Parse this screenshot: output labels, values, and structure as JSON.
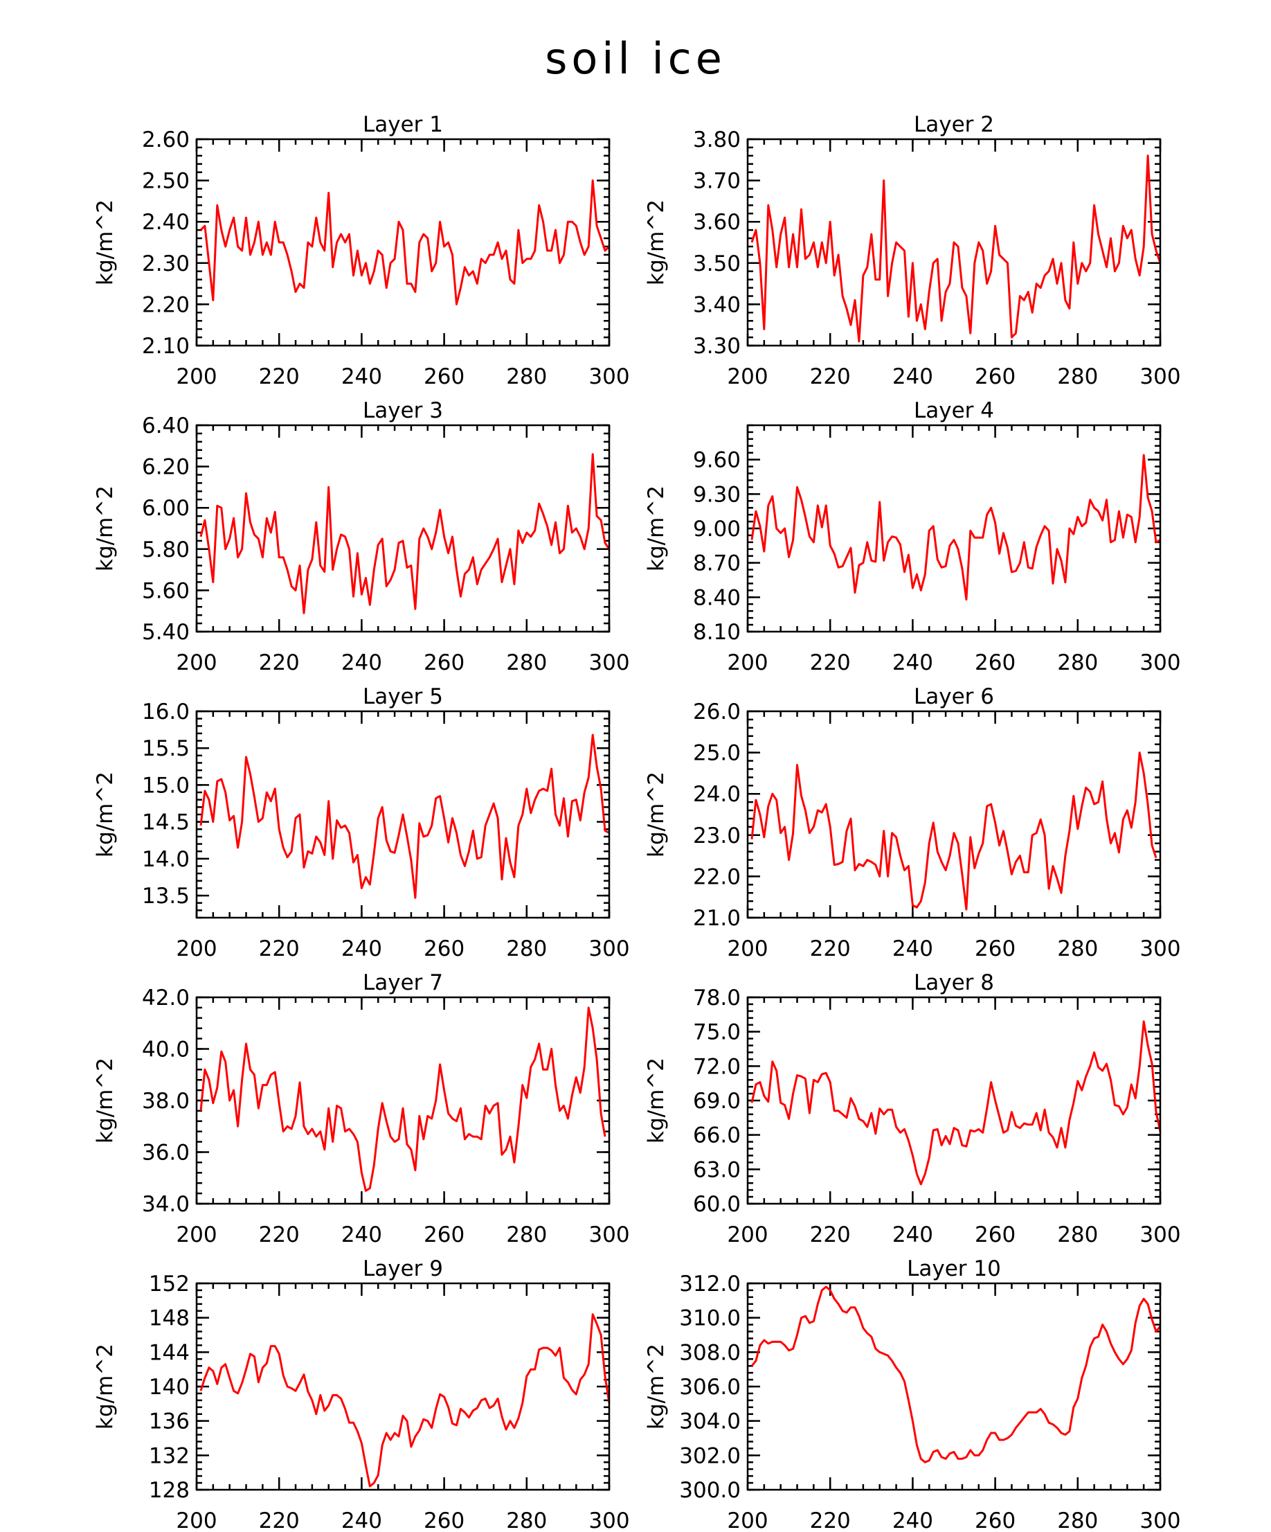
{
  "figure": {
    "title": "soil ice"
  },
  "chart_data": [
    {
      "type": "line",
      "title": "Layer 1",
      "ylabel": "kg/m^2",
      "xlabel": "",
      "xlim": [
        200,
        300
      ],
      "ylim": [
        2.1,
        2.6
      ],
      "xticks": [
        200,
        220,
        240,
        260,
        280,
        300
      ],
      "yticks": [
        "2.10",
        "2.20",
        "2.30",
        "2.40",
        "2.50",
        "2.60"
      ],
      "x_start": 201,
      "x_step": 1,
      "line_color": "#ff0000",
      "values": [
        2.38,
        2.39,
        2.3,
        2.21,
        2.44,
        2.38,
        2.34,
        2.38,
        2.41,
        2.34,
        2.33,
        2.41,
        2.32,
        2.35,
        2.4,
        2.32,
        2.35,
        2.32,
        2.4,
        2.35,
        2.35,
        2.32,
        2.28,
        2.23,
        2.25,
        2.24,
        2.35,
        2.34,
        2.41,
        2.35,
        2.33,
        2.47,
        2.29,
        2.35,
        2.37,
        2.35,
        2.37,
        2.27,
        2.33,
        2.27,
        2.3,
        2.25,
        2.28,
        2.33,
        2.32,
        2.24,
        2.3,
        2.31,
        2.4,
        2.38,
        2.25,
        2.25,
        2.23,
        2.35,
        2.37,
        2.36,
        2.28,
        2.3,
        2.4,
        2.34,
        2.35,
        2.32,
        2.2,
        2.24,
        2.29,
        2.27,
        2.28,
        2.25,
        2.31,
        2.3,
        2.32,
        2.32,
        2.35,
        2.31,
        2.33,
        2.26,
        2.25,
        2.38,
        2.3,
        2.31,
        2.31,
        2.33,
        2.44,
        2.4,
        2.33,
        2.33,
        2.38,
        2.3,
        2.32,
        2.4,
        2.4,
        2.39,
        2.35,
        2.32,
        2.34,
        2.5,
        2.39,
        2.36,
        2.33,
        2.34
      ]
    },
    {
      "type": "line",
      "title": "Layer 2",
      "ylabel": "kg/m^2",
      "xlabel": "",
      "xlim": [
        200,
        300
      ],
      "ylim": [
        3.3,
        3.8
      ],
      "xticks": [
        200,
        220,
        240,
        260,
        280,
        300
      ],
      "yticks": [
        "3.30",
        "3.40",
        "3.50",
        "3.60",
        "3.70",
        "3.80"
      ],
      "x_start": 201,
      "x_step": 1,
      "line_color": "#ff0000",
      "values": [
        3.55,
        3.58,
        3.5,
        3.34,
        3.64,
        3.58,
        3.49,
        3.57,
        3.61,
        3.49,
        3.57,
        3.49,
        3.63,
        3.51,
        3.52,
        3.55,
        3.49,
        3.55,
        3.5,
        3.6,
        3.47,
        3.52,
        3.42,
        3.39,
        3.35,
        3.41,
        3.31,
        3.47,
        3.49,
        3.57,
        3.46,
        3.46,
        3.7,
        3.42,
        3.5,
        3.55,
        3.54,
        3.53,
        3.37,
        3.5,
        3.36,
        3.4,
        3.34,
        3.43,
        3.5,
        3.51,
        3.36,
        3.43,
        3.45,
        3.55,
        3.54,
        3.44,
        3.42,
        3.33,
        3.5,
        3.55,
        3.53,
        3.45,
        3.48,
        3.59,
        3.52,
        3.51,
        3.5,
        3.32,
        3.33,
        3.42,
        3.41,
        3.43,
        3.38,
        3.45,
        3.44,
        3.47,
        3.48,
        3.51,
        3.45,
        3.5,
        3.41,
        3.39,
        3.55,
        3.45,
        3.5,
        3.48,
        3.5,
        3.64,
        3.57,
        3.53,
        3.49,
        3.56,
        3.48,
        3.5,
        3.59,
        3.56,
        3.58,
        3.51,
        3.47,
        3.54,
        3.76,
        3.57,
        3.53,
        3.5
      ]
    },
    {
      "type": "line",
      "title": "Layer 3",
      "ylabel": "kg/m^2",
      "xlabel": "",
      "xlim": [
        200,
        300
      ],
      "ylim": [
        5.4,
        6.4
      ],
      "xticks": [
        200,
        220,
        240,
        260,
        280,
        300
      ],
      "yticks": [
        "5.40",
        "5.60",
        "5.80",
        "6.00",
        "6.20",
        "6.40"
      ],
      "x_start": 201,
      "x_step": 1,
      "line_color": "#ff0000",
      "values": [
        5.86,
        5.94,
        5.8,
        5.64,
        6.01,
        6.0,
        5.8,
        5.85,
        5.95,
        5.76,
        5.8,
        6.07,
        5.93,
        5.87,
        5.85,
        5.76,
        5.95,
        5.88,
        5.98,
        5.76,
        5.76,
        5.7,
        5.62,
        5.6,
        5.72,
        5.49,
        5.7,
        5.75,
        5.93,
        5.72,
        5.69,
        6.1,
        5.7,
        5.8,
        5.87,
        5.86,
        5.8,
        5.57,
        5.78,
        5.58,
        5.66,
        5.53,
        5.7,
        5.82,
        5.85,
        5.62,
        5.65,
        5.7,
        5.83,
        5.84,
        5.71,
        5.72,
        5.51,
        5.85,
        5.9,
        5.86,
        5.8,
        5.88,
        5.99,
        5.86,
        5.78,
        5.86,
        5.7,
        5.57,
        5.68,
        5.7,
        5.76,
        5.63,
        5.7,
        5.73,
        5.76,
        5.8,
        5.85,
        5.64,
        5.72,
        5.8,
        5.63,
        5.89,
        5.83,
        5.88,
        5.86,
        5.89,
        6.02,
        5.97,
        5.91,
        5.82,
        5.93,
        5.78,
        5.8,
        6.01,
        5.88,
        5.9,
        5.86,
        5.8,
        5.9,
        6.26,
        5.96,
        5.94,
        5.83,
        5.8
      ]
    },
    {
      "type": "line",
      "title": "Layer 4",
      "ylabel": "kg/m^2",
      "xlabel": "",
      "xlim": [
        200,
        300
      ],
      "ylim": [
        8.1,
        9.9
      ],
      "xticks": [
        200,
        220,
        240,
        260,
        280,
        300
      ],
      "yticks": [
        "8.10",
        "8.40",
        "8.70",
        "9.00",
        "9.30",
        "9.60"
      ],
      "x_start": 201,
      "x_step": 1,
      "line_color": "#ff0000",
      "values": [
        8.9,
        9.15,
        9.02,
        8.8,
        9.2,
        9.28,
        9.0,
        8.96,
        9.0,
        8.75,
        8.9,
        9.36,
        9.25,
        9.1,
        8.93,
        8.88,
        9.2,
        9.01,
        9.2,
        8.85,
        8.78,
        8.66,
        8.67,
        8.75,
        8.83,
        8.44,
        8.68,
        8.7,
        8.88,
        8.72,
        8.71,
        9.23,
        8.72,
        8.88,
        8.93,
        8.92,
        8.86,
        8.62,
        8.77,
        8.48,
        8.6,
        8.46,
        8.6,
        8.98,
        9.02,
        8.73,
        8.66,
        8.67,
        8.85,
        8.9,
        8.82,
        8.65,
        8.38,
        8.98,
        8.92,
        8.92,
        8.92,
        9.12,
        9.18,
        9.05,
        8.78,
        8.96,
        8.83,
        8.62,
        8.63,
        8.7,
        8.88,
        8.66,
        8.65,
        8.84,
        8.94,
        9.02,
        8.98,
        8.52,
        8.82,
        8.72,
        8.53,
        9.0,
        8.95,
        9.1,
        9.02,
        9.05,
        9.25,
        9.18,
        9.15,
        9.07,
        9.25,
        8.88,
        8.9,
        9.15,
        8.92,
        9.12,
        9.1,
        8.88,
        9.1,
        9.64,
        9.27,
        9.15,
        8.88,
        8.9
      ]
    },
    {
      "type": "line",
      "title": "Layer 5",
      "ylabel": "kg/m^2",
      "xlabel": "",
      "xlim": [
        200,
        300
      ],
      "ylim": [
        13.2,
        16.0
      ],
      "xticks": [
        200,
        220,
        240,
        260,
        280,
        300
      ],
      "yticks": [
        "13.5",
        "14.0",
        "14.5",
        "15.0",
        "15.5",
        "16.0"
      ],
      "x_start": 201,
      "x_step": 1,
      "line_color": "#ff0000",
      "values": [
        14.45,
        14.92,
        14.8,
        14.5,
        15.05,
        15.08,
        14.9,
        14.52,
        14.58,
        14.15,
        14.5,
        15.38,
        15.15,
        14.84,
        14.5,
        14.55,
        14.9,
        14.78,
        14.95,
        14.4,
        14.15,
        14.02,
        14.1,
        14.55,
        14.6,
        13.88,
        14.1,
        14.07,
        14.3,
        14.22,
        14.05,
        14.78,
        14.0,
        14.52,
        14.42,
        14.45,
        14.35,
        13.95,
        14.05,
        13.6,
        13.75,
        13.65,
        14.08,
        14.55,
        14.7,
        14.25,
        14.1,
        14.08,
        14.32,
        14.6,
        14.3,
        13.98,
        13.47,
        14.48,
        14.3,
        14.32,
        14.45,
        14.82,
        14.85,
        14.55,
        14.22,
        14.55,
        14.35,
        14.05,
        13.9,
        14.1,
        14.38,
        14.0,
        14.02,
        14.45,
        14.6,
        14.75,
        14.55,
        13.72,
        14.28,
        13.95,
        13.75,
        14.45,
        14.6,
        14.95,
        14.62,
        14.8,
        14.92,
        14.95,
        14.92,
        15.22,
        14.6,
        14.45,
        14.82,
        14.3,
        14.78,
        14.8,
        14.52,
        14.9,
        15.1,
        15.68,
        15.25,
        14.95,
        14.38,
        14.35
      ]
    },
    {
      "type": "line",
      "title": "Layer 6",
      "ylabel": "kg/m^2",
      "xlabel": "",
      "xlim": [
        200,
        300
      ],
      "ylim": [
        21.0,
        26.0
      ],
      "xticks": [
        200,
        220,
        240,
        260,
        280,
        300
      ],
      "yticks": [
        "21.0",
        "22.0",
        "23.0",
        "24.0",
        "25.0",
        "26.0"
      ],
      "x_start": 201,
      "x_step": 1,
      "line_color": "#ff0000",
      "values": [
        22.9,
        23.85,
        23.5,
        22.95,
        23.7,
        24.0,
        23.85,
        23.05,
        23.2,
        22.4,
        23.05,
        24.7,
        23.95,
        23.6,
        23.05,
        23.2,
        23.6,
        23.55,
        23.75,
        23.2,
        22.28,
        22.3,
        22.35,
        23.1,
        23.4,
        22.15,
        22.3,
        22.25,
        22.4,
        22.35,
        22.28,
        22.0,
        23.1,
        22.0,
        23.05,
        22.95,
        22.5,
        22.15,
        22.25,
        21.3,
        21.25,
        21.4,
        21.85,
        22.8,
        23.3,
        22.6,
        22.35,
        22.15,
        22.5,
        23.05,
        22.8,
        22.05,
        21.2,
        22.95,
        22.2,
        22.55,
        22.8,
        23.7,
        23.75,
        23.3,
        22.75,
        23.1,
        22.6,
        22.05,
        22.35,
        22.5,
        22.1,
        22.1,
        23.0,
        23.05,
        23.38,
        23.0,
        21.7,
        22.25,
        21.95,
        21.6,
        22.5,
        23.1,
        23.95,
        23.15,
        23.7,
        24.15,
        24.05,
        23.75,
        23.8,
        24.3,
        23.4,
        22.8,
        23.05,
        22.58,
        23.38,
        23.6,
        23.18,
        23.8,
        25.0,
        24.5,
        23.75,
        22.75,
        22.45
      ]
    },
    {
      "type": "line",
      "title": "Layer 7",
      "ylabel": "kg/m^2",
      "xlabel": "",
      "xlim": [
        200,
        300
      ],
      "ylim": [
        34.0,
        42.0
      ],
      "xticks": [
        200,
        220,
        240,
        260,
        280,
        300
      ],
      "yticks": [
        "34.0",
        "36.0",
        "38.0",
        "40.0",
        "42.0"
      ],
      "x_start": 201,
      "x_step": 1,
      "line_color": "#ff0000",
      "values": [
        37.6,
        39.2,
        38.8,
        37.9,
        38.5,
        39.9,
        39.5,
        38.0,
        38.4,
        37.0,
        38.8,
        40.2,
        39.2,
        39.0,
        37.7,
        38.6,
        38.6,
        39.0,
        39.1,
        37.9,
        36.8,
        37.0,
        36.9,
        37.4,
        38.7,
        37.0,
        36.7,
        36.9,
        36.6,
        36.8,
        36.1,
        37.7,
        36.4,
        37.8,
        37.7,
        36.8,
        36.9,
        36.7,
        36.4,
        35.2,
        34.5,
        34.6,
        35.5,
        36.9,
        37.9,
        37.2,
        36.6,
        36.4,
        36.5,
        37.7,
        36.3,
        36.1,
        35.3,
        37.4,
        36.5,
        37.4,
        37.3,
        38.0,
        39.4,
        38.4,
        37.5,
        37.3,
        37.2,
        37.7,
        36.5,
        36.7,
        36.6,
        36.6,
        36.5,
        37.8,
        37.5,
        37.8,
        37.9,
        35.9,
        36.1,
        36.6,
        35.6,
        37.0,
        38.6,
        38.1,
        39.3,
        39.6,
        40.2,
        39.2,
        39.2,
        40.0,
        38.6,
        37.6,
        37.8,
        37.3,
        38.2,
        38.9,
        38.3,
        39.3,
        41.6,
        40.8,
        39.6,
        37.5,
        36.6
      ]
    },
    {
      "type": "line",
      "title": "Layer 8",
      "ylabel": "kg/m^2",
      "xlabel": "",
      "xlim": [
        200,
        300
      ],
      "ylim": [
        60.0,
        78.0
      ],
      "xticks": [
        200,
        220,
        240,
        260,
        280,
        300
      ],
      "yticks": [
        "60.0",
        "63.0",
        "66.0",
        "69.0",
        "72.0",
        "75.0",
        "78.0"
      ],
      "x_start": 201,
      "x_step": 1,
      "line_color": "#ff0000",
      "values": [
        68.8,
        70.4,
        70.6,
        69.4,
        68.9,
        72.4,
        71.6,
        68.8,
        68.6,
        67.4,
        69.6,
        71.2,
        71.1,
        70.9,
        67.9,
        70.8,
        70.6,
        71.3,
        71.4,
        70.6,
        68.1,
        68.1,
        67.8,
        67.5,
        69.2,
        68.5,
        67.4,
        67.2,
        66.7,
        67.9,
        66.1,
        68.3,
        67.8,
        68.2,
        68.2,
        66.7,
        66.2,
        66.5,
        65.5,
        64.2,
        62.6,
        61.7,
        62.6,
        64.0,
        66.4,
        66.5,
        65.1,
        65.9,
        65.2,
        66.6,
        66.4,
        65.1,
        65.0,
        66.4,
        66.3,
        66.5,
        66.2,
        68.3,
        70.6,
        69.0,
        67.6,
        66.2,
        66.4,
        68.0,
        66.8,
        66.6,
        67.0,
        66.9,
        66.9,
        67.9,
        66.4,
        68.2,
        66.2,
        65.8,
        64.9,
        66.6,
        64.9,
        67.3,
        68.8,
        70.7,
        69.9,
        71.1,
        72.0,
        73.2,
        71.9,
        71.6,
        72.2,
        70.8,
        68.6,
        68.5,
        67.8,
        68.4,
        70.4,
        69.2,
        72.0,
        75.9,
        73.8,
        72.2,
        68.0,
        66.3
      ]
    },
    {
      "type": "line",
      "title": "Layer 9",
      "ylabel": "kg/m^2",
      "xlabel": "",
      "xlim": [
        200,
        300
      ],
      "ylim": [
        128,
        152
      ],
      "xticks": [
        200,
        220,
        240,
        260,
        280,
        300
      ],
      "yticks": [
        "128",
        "132",
        "136",
        "140",
        "144",
        "148",
        "152"
      ],
      "x_start": 201,
      "x_step": 1,
      "line_color": "#ff0000",
      "values": [
        139.5,
        141.0,
        142.2,
        141.8,
        140.3,
        142.2,
        142.6,
        141.0,
        139.5,
        139.2,
        140.4,
        142.0,
        143.8,
        143.5,
        140.5,
        142.2,
        142.7,
        144.7,
        144.7,
        143.8,
        141.3,
        140.0,
        139.8,
        139.5,
        140.4,
        141.4,
        139.4,
        138.4,
        136.8,
        139.0,
        137.2,
        137.8,
        139.0,
        139.0,
        138.6,
        137.4,
        135.8,
        135.8,
        134.8,
        133.4,
        130.8,
        128.4,
        128.8,
        129.7,
        133.2,
        134.6,
        133.8,
        134.6,
        134.2,
        136.6,
        136.0,
        133.0,
        134.2,
        134.9,
        136.2,
        136.0,
        135.2,
        137.4,
        139.1,
        138.8,
        137.6,
        135.7,
        135.5,
        137.4,
        137.0,
        136.4,
        137.2,
        137.5,
        138.4,
        138.6,
        137.5,
        137.8,
        138.6,
        136.5,
        135.0,
        136.0,
        135.2,
        136.3,
        138.1,
        141.2,
        142.0,
        142.0,
        144.3,
        144.5,
        144.5,
        144.2,
        143.6,
        144.5,
        141.0,
        140.5,
        139.6,
        139.1,
        140.8,
        141.4,
        142.6,
        148.4,
        147.3,
        146.0,
        141.2,
        138.1
      ]
    },
    {
      "type": "line",
      "title": "Layer 10",
      "ylabel": "kg/m^2",
      "xlabel": "",
      "xlim": [
        200,
        300
      ],
      "ylim": [
        300.0,
        312.0
      ],
      "xticks": [
        200,
        220,
        240,
        260,
        280,
        300
      ],
      "yticks": [
        "300.0",
        "302.0",
        "304.0",
        "306.0",
        "308.0",
        "310.0",
        "312.0"
      ],
      "x_start": 201,
      "x_step": 1,
      "line_color": "#ff0000",
      "values": [
        307.2,
        307.5,
        308.4,
        308.7,
        308.5,
        308.6,
        308.6,
        308.6,
        308.4,
        308.1,
        308.2,
        309.0,
        310.0,
        310.1,
        309.7,
        309.8,
        310.8,
        311.6,
        311.8,
        311.6,
        311.1,
        310.8,
        310.4,
        310.3,
        310.6,
        310.6,
        310.1,
        309.4,
        309.1,
        308.9,
        308.2,
        308.0,
        307.9,
        307.8,
        307.5,
        307.1,
        306.8,
        306.3,
        305.2,
        304.0,
        302.6,
        301.8,
        301.6,
        301.7,
        302.2,
        302.3,
        301.9,
        301.8,
        302.1,
        302.2,
        301.8,
        301.8,
        301.9,
        302.3,
        302.0,
        302.0,
        302.3,
        302.9,
        303.3,
        303.3,
        302.9,
        302.9,
        303.0,
        303.2,
        303.6,
        303.9,
        304.2,
        304.5,
        304.5,
        304.5,
        304.7,
        304.4,
        303.9,
        303.8,
        303.6,
        303.3,
        303.2,
        303.4,
        304.8,
        305.3,
        306.5,
        307.2,
        308.3,
        308.8,
        308.9,
        309.6,
        309.2,
        308.5,
        308.0,
        307.6,
        307.3,
        307.6,
        308.1,
        309.7,
        310.7,
        311.1,
        310.8,
        309.9,
        309.2,
        309.5
      ]
    }
  ]
}
